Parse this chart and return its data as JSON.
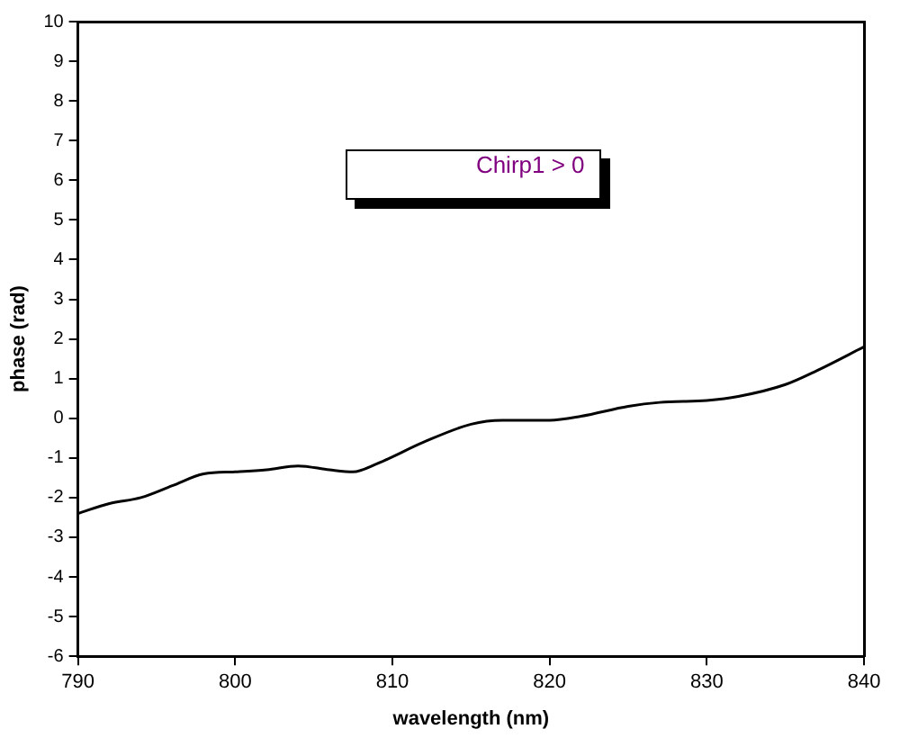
{
  "chart_data": {
    "type": "line",
    "xlabel": "wavelength (nm)",
    "ylabel": "phase (rad)",
    "annotations": [
      "Chirp1 > 0"
    ],
    "x": [
      790,
      792,
      794,
      796,
      798,
      800,
      802,
      804,
      806,
      807.5,
      809,
      812,
      815,
      817,
      820,
      822,
      825,
      827,
      830,
      832,
      835,
      837,
      840
    ],
    "series": [
      {
        "color": "#000000",
        "values": [
          -2.4,
          -2.15,
          -2.0,
          -1.7,
          -1.4,
          -1.35,
          -1.3,
          -1.2,
          -1.3,
          -1.35,
          -1.15,
          -0.6,
          -0.15,
          -0.05,
          -0.05,
          0.05,
          0.3,
          0.4,
          0.45,
          0.55,
          0.85,
          1.2,
          1.8
        ]
      }
    ],
    "xlim": [
      790,
      840
    ],
    "xticks": [
      790,
      800,
      810,
      820,
      830,
      840
    ],
    "ylim": [
      -6,
      10
    ],
    "yticks": [
      -6,
      -5,
      -4,
      -3,
      -2,
      -1,
      0,
      1,
      2,
      3,
      4,
      5,
      6,
      7,
      8,
      9,
      10
    ],
    "grid": false,
    "legend": false,
    "marker": "none",
    "line_style": "solid"
  }
}
